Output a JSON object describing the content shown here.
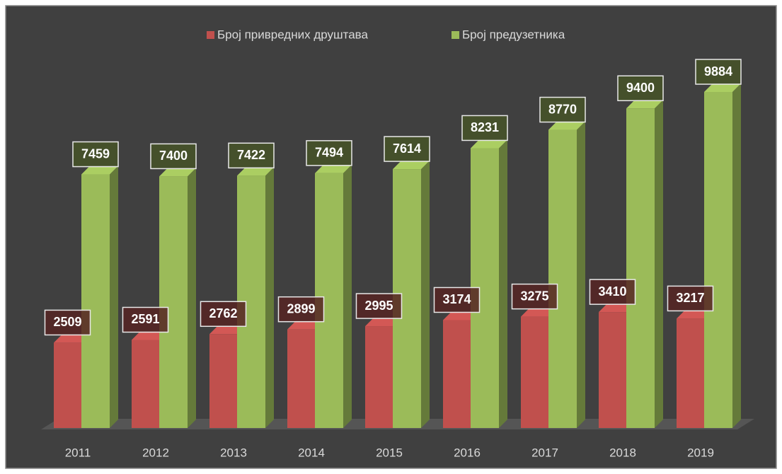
{
  "chart_data": {
    "type": "bar3d",
    "categories": [
      "2011",
      "2012",
      "2013",
      "2014",
      "2015",
      "2016",
      "2017",
      "2018",
      "2019"
    ],
    "series": [
      {
        "name": "Број привредних друштава",
        "color": "#c0504d",
        "values": [
          2509,
          2591,
          2762,
          2899,
          2995,
          3174,
          3275,
          3410,
          3217
        ]
      },
      {
        "name": "Број предузетника",
        "color": "#9bbb59",
        "values": [
          7459,
          7400,
          7422,
          7494,
          7614,
          8231,
          8770,
          9400,
          9884
        ]
      }
    ],
    "legend": "top"
  }
}
